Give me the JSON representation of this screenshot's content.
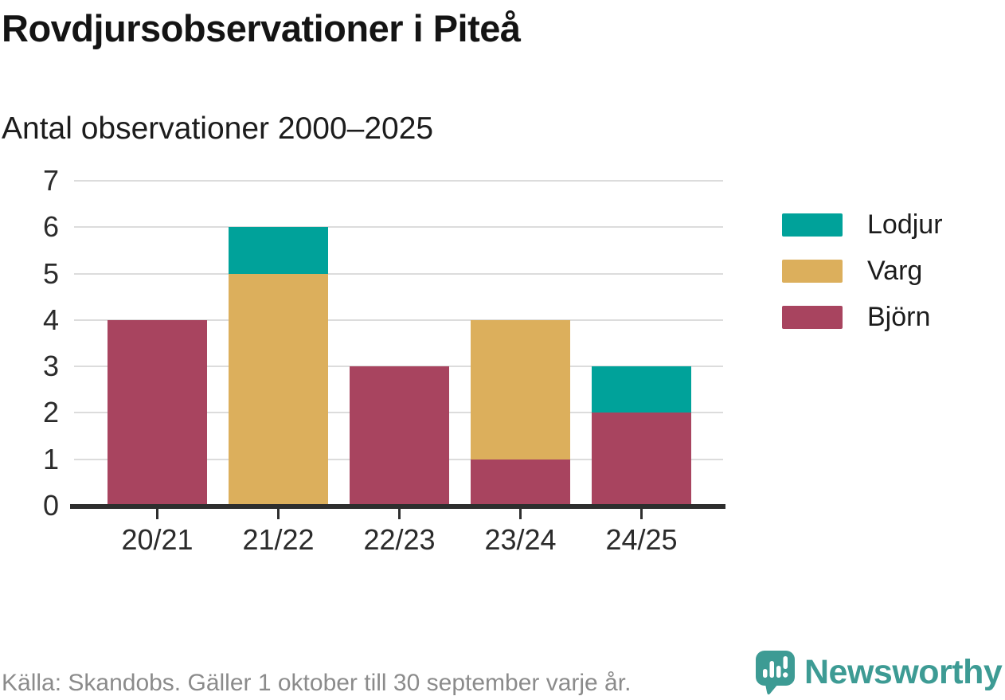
{
  "header": {
    "title": "Rovdjursobservationer i Piteå",
    "subtitle": "Antal observationer 2000–2025"
  },
  "footer": {
    "source": "Källa: Skandobs. Gäller 1 oktober till 30 september varje år.",
    "brand": "Newsworthy"
  },
  "colors": {
    "lodjur_teal": "#00a29a",
    "varg_gold": "#dcaf5c",
    "bjorn_maroon": "#a8445f",
    "gridline": "#dcdcdc",
    "axis": "#2e2e2e",
    "text_dark": "#1c1c1c",
    "source_gray": "#8b8b8b",
    "brand_teal": "#3d9b94"
  },
  "chart_data": {
    "type": "bar",
    "stacked": true,
    "title": "Rovdjursobservationer i Piteå",
    "subtitle": "Antal observationer 2000–2025",
    "categories": [
      "20/21",
      "21/22",
      "22/23",
      "23/24",
      "24/25"
    ],
    "series": [
      {
        "name": "Björn",
        "color": "#a8445f",
        "values": [
          4,
          0,
          3,
          1,
          2
        ]
      },
      {
        "name": "Varg",
        "color": "#dcaf5c",
        "values": [
          0,
          5,
          0,
          3,
          0
        ]
      },
      {
        "name": "Lodjur",
        "color": "#00a29a",
        "values": [
          0,
          1,
          0,
          0,
          1
        ]
      }
    ],
    "totals": [
      4,
      6,
      3,
      4,
      3
    ],
    "legend": [
      {
        "label": "Lodjur",
        "color": "#00a29a"
      },
      {
        "label": "Varg",
        "color": "#dcaf5c"
      },
      {
        "label": "Björn",
        "color": "#a8445f"
      }
    ],
    "xlabel": "",
    "ylabel": "",
    "ylim": [
      0,
      7
    ],
    "yticks": [
      0,
      1,
      2,
      3,
      4,
      5,
      6,
      7
    ],
    "grid": true,
    "legend_position": "right"
  }
}
